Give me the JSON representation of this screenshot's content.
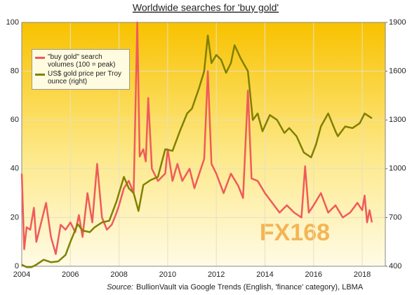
{
  "chart_data": {
    "type": "line",
    "title": "Worldwide searches for 'buy gold'",
    "source_label": "Source:",
    "source": "BullionVault via Google Trends (English, 'finance' category), LBMA",
    "watermark": "FX168",
    "xlim": [
      2004,
      2018.95
    ],
    "xticks": [
      2004,
      2006,
      2008,
      2010,
      2012,
      2014,
      2016,
      2018
    ],
    "ylim": [
      0,
      100
    ],
    "yticks": [
      0,
      20,
      40,
      60,
      80,
      100
    ],
    "y2lim": [
      400,
      1900
    ],
    "y2ticks": [
      400,
      700,
      1000,
      1300,
      1600,
      1900
    ],
    "grid": true,
    "legend": "upper-left",
    "series": [
      {
        "name": "\"buy gold\" search volumes (100 = peak)",
        "color": "#f05a5a",
        "x": [
          2004.0,
          2004.1,
          2004.2,
          2004.35,
          2004.5,
          2004.6,
          2004.8,
          2005.0,
          2005.2,
          2005.4,
          2005.6,
          2005.8,
          2006.0,
          2006.2,
          2006.35,
          2006.5,
          2006.7,
          2006.9,
          2007.1,
          2007.3,
          2007.5,
          2007.7,
          2007.9,
          2008.0,
          2008.2,
          2008.4,
          2008.6,
          2008.75,
          2008.85,
          2009.0,
          2009.1,
          2009.2,
          2009.35,
          2009.6,
          2009.9,
          2010.0,
          2010.2,
          2010.4,
          2010.6,
          2010.9,
          2011.1,
          2011.3,
          2011.5,
          2011.65,
          2011.8,
          2012.0,
          2012.3,
          2012.6,
          2012.9,
          2013.1,
          2013.3,
          2013.45,
          2013.7,
          2014.0,
          2014.3,
          2014.6,
          2014.9,
          2015.2,
          2015.5,
          2015.65,
          2015.8,
          2016.0,
          2016.3,
          2016.6,
          2016.9,
          2017.2,
          2017.5,
          2017.8,
          2018.0,
          2018.1,
          2018.2,
          2018.3,
          2018.4
        ],
        "values": [
          38,
          7,
          16,
          15,
          24,
          10,
          18,
          26,
          12,
          5,
          17,
          15,
          18,
          14,
          21,
          12,
          30,
          18,
          42,
          20,
          15,
          17,
          22,
          25,
          32,
          35,
          30,
          100,
          45,
          48,
          43,
          69,
          40,
          35,
          38,
          48,
          35,
          42,
          35,
          40,
          32,
          38,
          44,
          80,
          42,
          38,
          30,
          38,
          33,
          28,
          72,
          36,
          35,
          30,
          26,
          22,
          25,
          22,
          20,
          41,
          22,
          25,
          30,
          22,
          25,
          20,
          22,
          26,
          23,
          29,
          18,
          23,
          18
        ]
      },
      {
        "name": "US$ gold price per Troy ounce (right)",
        "color": "#808000",
        "axis": "y2",
        "x": [
          2004.0,
          2004.2,
          2004.4,
          2004.6,
          2004.9,
          2005.2,
          2005.5,
          2005.8,
          2006.0,
          2006.3,
          2006.5,
          2006.8,
          2007.0,
          2007.3,
          2007.6,
          2007.9,
          2008.2,
          2008.4,
          2008.6,
          2008.8,
          2009.0,
          2009.3,
          2009.6,
          2009.9,
          2010.2,
          2010.5,
          2010.8,
          2011.0,
          2011.3,
          2011.5,
          2011.65,
          2011.8,
          2012.0,
          2012.2,
          2012.4,
          2012.6,
          2012.75,
          2013.0,
          2013.3,
          2013.5,
          2013.7,
          2013.9,
          2014.2,
          2014.5,
          2014.8,
          2015.0,
          2015.3,
          2015.6,
          2015.9,
          2016.1,
          2016.3,
          2016.6,
          2016.9,
          2017.0,
          2017.3,
          2017.6,
          2017.9,
          2018.1,
          2018.3,
          2018.4
        ],
        "values": [
          410,
          395,
          395,
          410,
          440,
          425,
          430,
          470,
          550,
          660,
          620,
          610,
          640,
          670,
          680,
          800,
          950,
          880,
          850,
          740,
          900,
          930,
          950,
          1120,
          1110,
          1230,
          1340,
          1370,
          1500,
          1600,
          1820,
          1650,
          1700,
          1670,
          1590,
          1650,
          1760,
          1680,
          1600,
          1300,
          1340,
          1230,
          1330,
          1300,
          1220,
          1250,
          1200,
          1100,
          1070,
          1150,
          1260,
          1340,
          1230,
          1200,
          1260,
          1250,
          1280,
          1340,
          1320,
          1310
        ]
      }
    ]
  }
}
